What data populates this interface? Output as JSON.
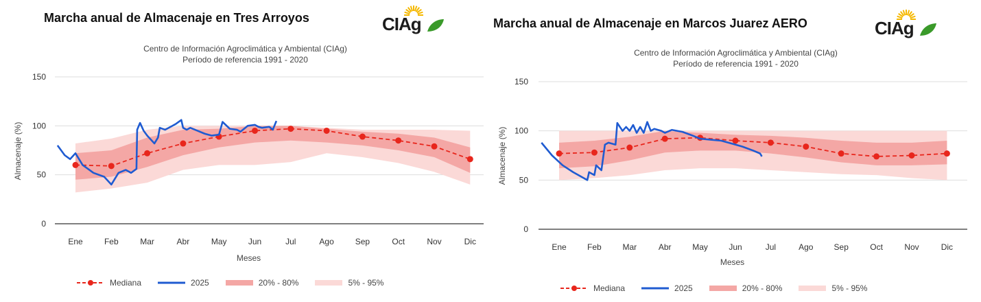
{
  "colors": {
    "mediana": "#e8261c",
    "current": "#1f5bd1",
    "band_inner": "#f4a7a5",
    "band_outer": "#fbd9d7",
    "logo_green": "#3a9a2a",
    "logo_sun": "#f5b800"
  },
  "logo": {
    "text": "CIAg"
  },
  "legend": {
    "mediana": "Mediana",
    "current": "2025",
    "band_inner": "20% - 80%",
    "band_outer": "5% - 95%"
  },
  "chart_data": [
    {
      "type": "line",
      "title": "Marcha anual de Almacenaje en Tres Arroyos",
      "subtitle": "Centro de Información Agroclimática y Ambiental (CIAg)",
      "subtitle2": "Período de referencia 1991 - 2020",
      "xlabel": "Meses",
      "ylabel": "Almacenaje (%)",
      "ylim": [
        0,
        150
      ],
      "yticks": [
        0,
        50,
        100,
        150
      ],
      "categories": [
        "Ene",
        "Feb",
        "Mar",
        "Abr",
        "May",
        "Jun",
        "Jul",
        "Ago",
        "Sep",
        "Oct",
        "Nov",
        "Dic"
      ],
      "grid": true,
      "legend_position": "bottom",
      "band_5_95": {
        "lower": [
          32,
          36,
          42,
          55,
          60,
          60,
          63,
          72,
          68,
          62,
          53,
          40
        ],
        "upper": [
          82,
          87,
          96,
          100,
          100,
          100,
          100,
          98,
          96,
          96,
          96,
          95
        ]
      },
      "band_20_80": {
        "lower": [
          45,
          48,
          58,
          70,
          78,
          83,
          85,
          83,
          80,
          75,
          68,
          52
        ],
        "upper": [
          72,
          75,
          88,
          96,
          97,
          100,
          100,
          97,
          94,
          92,
          88,
          78
        ]
      },
      "series": [
        {
          "name": "Mediana",
          "type": "dashed-markers",
          "x": [
            1,
            2,
            3,
            4,
            5,
            6,
            7,
            8,
            9,
            10,
            11,
            12
          ],
          "values": [
            60,
            59,
            72,
            82,
            89,
            95,
            97,
            95,
            89,
            85,
            79,
            66
          ]
        },
        {
          "name": "2025",
          "type": "line",
          "x": [
            0.5,
            0.7,
            0.85,
            1.0,
            1.2,
            1.5,
            1.8,
            2.0,
            2.2,
            2.4,
            2.55,
            2.7,
            2.72,
            2.8,
            2.9,
            3.0,
            3.1,
            3.2,
            3.3,
            3.35,
            3.5,
            3.7,
            3.8,
            3.95,
            4.0,
            4.1,
            4.2,
            4.4,
            4.6,
            4.8,
            5.0,
            5.1,
            5.3,
            5.5,
            5.6,
            5.8,
            6.0,
            6.1,
            6.2,
            6.4,
            6.5,
            6.6
          ],
          "values": [
            80,
            70,
            66,
            72,
            60,
            52,
            48,
            40,
            52,
            55,
            52,
            56,
            96,
            103,
            95,
            90,
            86,
            82,
            88,
            98,
            96,
            100,
            102,
            106,
            98,
            96,
            98,
            95,
            92,
            90,
            91,
            104,
            97,
            96,
            94,
            100,
            101,
            99,
            98,
            99,
            96,
            105
          ]
        }
      ]
    },
    {
      "type": "line",
      "title": "Marcha anual de Almacenaje en Marcos Juarez AERO",
      "subtitle": "Centro de Información Agroclimática y Ambiental (CIAg)",
      "subtitle2": "Período de referencia 1991 - 2020",
      "xlabel": "Meses",
      "ylabel": "Almacenaje (%)",
      "ylim": [
        0,
        150
      ],
      "yticks": [
        0,
        50,
        100,
        150
      ],
      "categories": [
        "Ene",
        "Feb",
        "Mar",
        "Abr",
        "May",
        "Jun",
        "Jul",
        "Ago",
        "Sep",
        "Oct",
        "Nov",
        "Dic"
      ],
      "grid": true,
      "legend_position": "bottom",
      "band_5_95": {
        "lower": [
          50,
          52,
          55,
          60,
          62,
          62,
          60,
          58,
          56,
          55,
          52,
          50
        ],
        "upper": [
          100,
          100,
          100,
          100,
          100,
          100,
          100,
          100,
          100,
          100,
          100,
          100
        ]
      },
      "band_20_80": {
        "lower": [
          62,
          64,
          70,
          78,
          80,
          80,
          77,
          73,
          68,
          65,
          65,
          66
        ],
        "upper": [
          88,
          90,
          94,
          100,
          98,
          96,
          95,
          93,
          90,
          88,
          88,
          90
        ]
      },
      "series": [
        {
          "name": "Mediana",
          "type": "dashed-markers",
          "x": [
            1,
            2,
            3,
            4,
            5,
            6,
            7,
            8,
            9,
            10,
            11,
            12
          ],
          "values": [
            77,
            78,
            83,
            92,
            93,
            90,
            88,
            84,
            77,
            74,
            75,
            77
          ]
        },
        {
          "name": "2025",
          "type": "line",
          "x": [
            0.5,
            0.8,
            1.1,
            1.4,
            1.7,
            1.8,
            1.85,
            2.0,
            2.05,
            2.2,
            2.3,
            2.4,
            2.6,
            2.65,
            2.8,
            2.9,
            3.0,
            3.1,
            3.2,
            3.3,
            3.4,
            3.5,
            3.6,
            3.7,
            3.9,
            4.0,
            4.2,
            4.5,
            4.8,
            5.0,
            5.3,
            5.6,
            5.9,
            6.2,
            6.5,
            6.7,
            6.75
          ],
          "values": [
            88,
            75,
            65,
            58,
            52,
            50,
            58,
            55,
            65,
            60,
            86,
            88,
            86,
            108,
            100,
            104,
            100,
            106,
            98,
            104,
            98,
            109,
            100,
            102,
            100,
            98,
            101,
            99,
            95,
            92,
            91,
            90,
            87,
            84,
            80,
            77,
            74
          ]
        }
      ]
    }
  ]
}
